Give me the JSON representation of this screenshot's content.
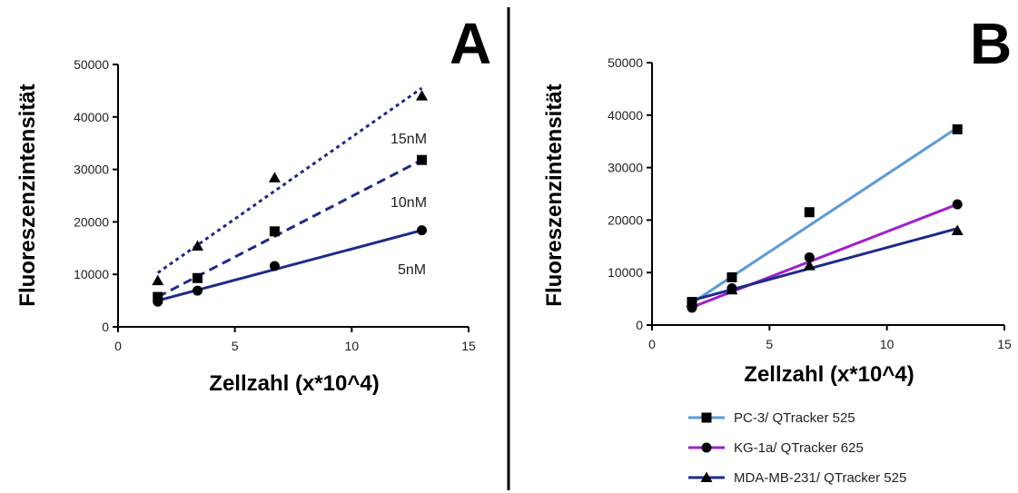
{
  "chart_data": [
    {
      "type": "scatter",
      "panel_label": "A",
      "xlabel": "Zellzahl (x*10^4)",
      "ylabel": "Fluoreszenzintensität",
      "xlim": [
        0,
        15
      ],
      "ylim": [
        0,
        50000
      ],
      "x_ticks": [
        "0",
        "5",
        "10",
        "15"
      ],
      "y_ticks": [
        "0",
        "10000",
        "20000",
        "30000",
        "40000",
        "50000"
      ],
      "grid": false,
      "legend": "none",
      "series": [
        {
          "name": "5nM",
          "marker": "circle",
          "line_style": "solid",
          "color": "#1f2a8a",
          "x": [
            1.7,
            3.4,
            6.7,
            13.0
          ],
          "y": [
            4800,
            6900,
            11600,
            18400
          ],
          "fit": [
            [
              1.7,
              5000
            ],
            [
              13.0,
              18400
            ]
          ]
        },
        {
          "name": "10nM",
          "marker": "square",
          "line_style": "dashed",
          "color": "#1f2a8a",
          "x": [
            1.7,
            3.4,
            6.7,
            13.0
          ],
          "y": [
            5700,
            9300,
            18200,
            31800
          ],
          "fit": [
            [
              1.7,
              5700
            ],
            [
              13.0,
              31800
            ]
          ]
        },
        {
          "name": "15nM",
          "marker": "triangle",
          "line_style": "dotted",
          "color": "#1f2a8a",
          "x": [
            1.7,
            3.4,
            6.7,
            13.0
          ],
          "y": [
            8800,
            15400,
            28400,
            44000
          ],
          "fit": [
            [
              1.7,
              10300
            ],
            [
              13.0,
              45500
            ]
          ]
        }
      ]
    },
    {
      "type": "scatter",
      "panel_label": "B",
      "xlabel": "Zellzahl (x*10^4)",
      "ylabel": "Fluoreszenzintensität",
      "xlim": [
        0,
        15
      ],
      "ylim": [
        0,
        50000
      ],
      "x_ticks": [
        "0",
        "5",
        "10",
        "15"
      ],
      "y_ticks": [
        "0",
        "10000",
        "20000",
        "30000",
        "40000",
        "50000"
      ],
      "grid": false,
      "legend": "bottom",
      "series": [
        {
          "name": "PC-3/ QTracker 525",
          "marker": "square",
          "line_style": "solid",
          "color": "#5b9bd5",
          "x": [
            1.7,
            3.4,
            6.7,
            13.0
          ],
          "y": [
            4400,
            9100,
            21500,
            37300
          ],
          "fit": [
            [
              1.7,
              4200
            ],
            [
              13.0,
              37600
            ]
          ]
        },
        {
          "name": "KG-1a/ QTracker 625",
          "marker": "circle",
          "line_style": "solid",
          "color": "#a020c8",
          "x": [
            1.7,
            3.4,
            6.7,
            13.0
          ],
          "y": [
            3300,
            7000,
            12900,
            23000
          ],
          "fit": [
            [
              1.7,
              3400
            ],
            [
              13.0,
              23000
            ]
          ]
        },
        {
          "name": "MDA-MB-231/ QTracker 525",
          "marker": "triangle",
          "line_style": "solid",
          "color": "#1f2a8a",
          "x": [
            1.7,
            3.4,
            6.7,
            13.0
          ],
          "y": [
            4300,
            6700,
            11300,
            18000
          ],
          "fit": [
            [
              1.7,
              4700
            ],
            [
              13.0,
              18400
            ]
          ]
        }
      ]
    }
  ]
}
